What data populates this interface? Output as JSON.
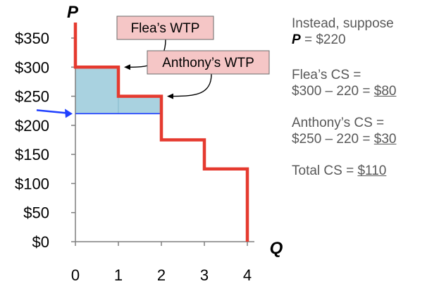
{
  "chart_data": {
    "type": "step",
    "x_axis": {
      "label": "Q",
      "ticks": [
        0,
        1,
        2,
        3,
        4
      ],
      "range": [
        0,
        4
      ]
    },
    "y_axis": {
      "label": "P",
      "ticks": [
        "$0",
        "$50",
        "$100",
        "$150",
        "$200",
        "$250",
        "$300",
        "$350"
      ],
      "range": [
        0,
        350
      ]
    },
    "demand_steps": [
      {
        "from_q": 0,
        "to_q": 1,
        "price": 300
      },
      {
        "from_q": 1,
        "to_q": 2,
        "price": 250
      },
      {
        "from_q": 2,
        "to_q": 3,
        "price": 175
      },
      {
        "from_q": 3,
        "to_q": 4,
        "price": 125
      }
    ],
    "price_line": 220,
    "consumer_surplus": [
      {
        "q_from": 0,
        "q_to": 1,
        "top": 300,
        "bottom": 220
      },
      {
        "q_from": 1,
        "q_to": 2,
        "top": 250,
        "bottom": 220
      }
    ],
    "callouts": [
      {
        "text": "Flea’s WTP",
        "target_q": 1,
        "target_price": 300
      },
      {
        "text": "Anthony’s WTP",
        "target_q": 2,
        "target_price": 250
      }
    ],
    "colors": {
      "demand": "#e53a2f",
      "surplus": "#a9d2e0",
      "price_line": "#1f3fff",
      "callout_bg": "#f5c6c6",
      "axis": "#7f7f7f"
    }
  },
  "side_text": {
    "l1": "Instead, suppose",
    "l2_var": "P",
    "l2_rest": " = $220",
    "flea_title": "Flea’s CS =",
    "flea_calc": "$300 – 220 = ",
    "flea_value": "$80",
    "anthony_title": "Anthony’s CS =",
    "anthony_calc": "$250 – 220 = ",
    "anthony_value": "$30",
    "total_label": "Total CS = ",
    "total_value": "$110"
  }
}
